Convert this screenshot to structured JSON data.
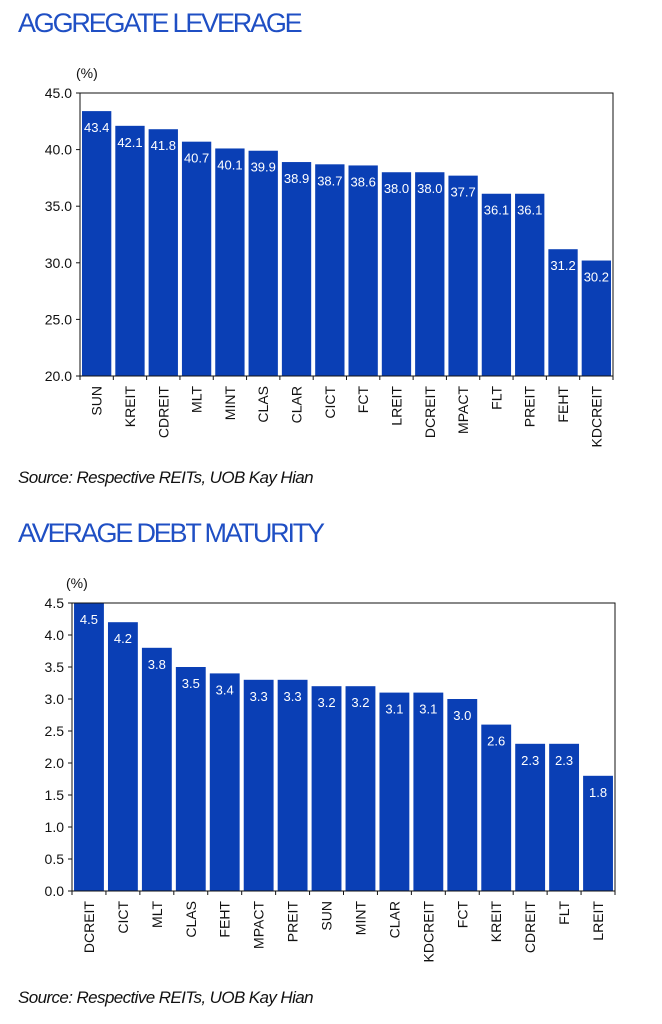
{
  "panels": [
    {
      "title": "AGGREGATE LEVERAGE",
      "source": "Source: Respective REITs, UOB Kay Hian",
      "chart_data": {
        "type": "bar",
        "unit_label": "(%)",
        "categories": [
          "SUN",
          "KREIT",
          "CDREIT",
          "MLT",
          "MINT",
          "CLAS",
          "CLAR",
          "CICT",
          "FCT",
          "LREIT",
          "DCREIT",
          "MPACT",
          "FLT",
          "PREIT",
          "FEHT",
          "KDCREIT"
        ],
        "values": [
          43.4,
          42.1,
          41.8,
          40.7,
          40.1,
          39.9,
          38.9,
          38.7,
          38.6,
          38.0,
          38.0,
          37.7,
          36.1,
          36.1,
          31.2,
          30.2
        ],
        "yticks": [
          "45.0",
          "40.0",
          "35.0",
          "30.0",
          "25.0",
          "20.0"
        ],
        "ylim": [
          20,
          45
        ],
        "bar_color": "#0a3fb5",
        "label_color": "#ffffff",
        "grid": false
      }
    },
    {
      "title": "AVERAGE DEBT MATURITY",
      "source": "Source: Respective REITs, UOB Kay Hian",
      "chart_data": {
        "type": "bar",
        "unit_label": "(%)",
        "categories": [
          "DCREIT",
          "CICT",
          "MLT",
          "CLAS",
          "FEHT",
          "MPACT",
          "PREIT",
          "SUN",
          "MINT",
          "CLAR",
          "KDCREIT",
          "FCT",
          "KREIT",
          "CDREIT",
          "FLT",
          "LREIT"
        ],
        "values": [
          4.5,
          4.2,
          3.8,
          3.5,
          3.4,
          3.3,
          3.3,
          3.2,
          3.2,
          3.1,
          3.1,
          3.0,
          2.6,
          2.3,
          2.3,
          1.8
        ],
        "value_labels": [
          "4.5",
          "4.2",
          "3.8",
          "3.5",
          "3.4",
          "3.3",
          "3.3",
          "3.2",
          "3.2",
          "3.1",
          "3.1",
          "3.0",
          "2.6",
          "2.3",
          "2.3",
          "1.8"
        ],
        "yticks": [
          "4.5",
          "4.0",
          "3.5",
          "3.0",
          "2.5",
          "2.0",
          "1.5",
          "1.0",
          "0.5",
          "0.0"
        ],
        "ylim": [
          0,
          4.5
        ],
        "bar_color": "#0a3fb5",
        "label_color": "#ffffff",
        "grid": false
      }
    }
  ]
}
